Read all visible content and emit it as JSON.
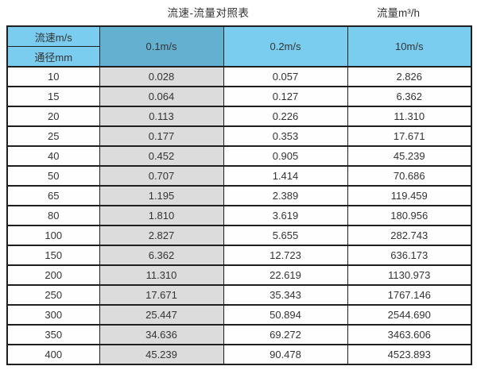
{
  "page": {
    "title": "流速-流量对照表",
    "unit_label": "流量m³/h"
  },
  "table": {
    "header": {
      "velocity_label": "流速m/s",
      "diameter_label": "通径mm",
      "columns": [
        "0.1m/s",
        "0.2m/s",
        "10m/s"
      ]
    },
    "rows": [
      {
        "dn": "10",
        "v01": "0.028",
        "v02": "0.057",
        "v10": "2.826"
      },
      {
        "dn": "15",
        "v01": "0.064",
        "v02": "0.127",
        "v10": "6.362"
      },
      {
        "dn": "20",
        "v01": "0.113",
        "v02": "0.226",
        "v10": "11.310"
      },
      {
        "dn": "25",
        "v01": "0.177",
        "v02": "0.353",
        "v10": "17.671"
      },
      {
        "dn": "40",
        "v01": "0.452",
        "v02": "0.905",
        "v10": "45.239"
      },
      {
        "dn": "50",
        "v01": "0.707",
        "v02": "1.414",
        "v10": "70.686"
      },
      {
        "dn": "65",
        "v01": "1.195",
        "v02": "2.389",
        "v10": "119.459"
      },
      {
        "dn": "80",
        "v01": "1.810",
        "v02": "3.619",
        "v10": "180.956"
      },
      {
        "dn": "100",
        "v01": "2.827",
        "v02": "5.655",
        "v10": "282.743"
      },
      {
        "dn": "150",
        "v01": "6.362",
        "v02": "12.723",
        "v10": "636.173"
      },
      {
        "dn": "200",
        "v01": "11.310",
        "v02": "22.619",
        "v10": "1130.973"
      },
      {
        "dn": "250",
        "v01": "17.671",
        "v02": "35.343",
        "v10": "1767.146"
      },
      {
        "dn": "300",
        "v01": "25.447",
        "v02": "50.894",
        "v10": "2544.690"
      },
      {
        "dn": "350",
        "v01": "34.636",
        "v02": "69.272",
        "v10": "3463.606"
      },
      {
        "dn": "400",
        "v01": "45.239",
        "v02": "90.478",
        "v10": "4523.893"
      }
    ]
  },
  "colors": {
    "header_blue": "#7bcdf0",
    "velocity_col_blue": "#64b0d1",
    "highlight_gray": "#dcdcdc",
    "border": "#1f1f1f"
  },
  "chart_data": {
    "type": "table",
    "title": "流速-流量对照表",
    "flow_unit_label": "流量m³/h",
    "column_header": "流速m/s",
    "row_header": "通径mm",
    "columns": [
      "0.1m/s",
      "0.2m/s",
      "10m/s"
    ],
    "diameters_mm": [
      10,
      15,
      20,
      25,
      40,
      50,
      65,
      80,
      100,
      150,
      200,
      250,
      300,
      350,
      400
    ],
    "series": [
      {
        "name": "0.1m/s",
        "values": [
          0.028,
          0.064,
          0.113,
          0.177,
          0.452,
          0.707,
          1.195,
          1.81,
          2.827,
          6.362,
          11.31,
          17.671,
          25.447,
          34.636,
          45.239
        ]
      },
      {
        "name": "0.2m/s",
        "values": [
          0.057,
          0.127,
          0.226,
          0.353,
          0.905,
          1.414,
          2.389,
          3.619,
          5.655,
          12.723,
          22.619,
          35.343,
          50.894,
          69.272,
          90.478
        ]
      },
      {
        "name": "10m/s",
        "values": [
          2.826,
          6.362,
          11.31,
          17.671,
          45.239,
          70.686,
          119.459,
          180.956,
          282.743,
          636.173,
          1130.973,
          1767.146,
          2544.69,
          3463.606,
          4523.893
        ]
      }
    ]
  }
}
